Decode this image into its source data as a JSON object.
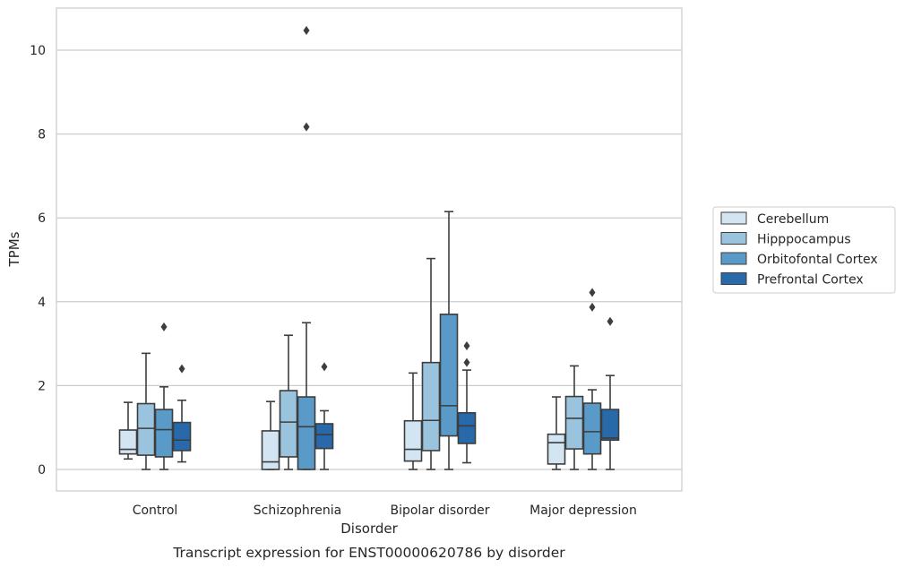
{
  "chart_data": {
    "type": "box",
    "xlabel": "Disorder",
    "ylabel": "TPMs",
    "caption": "Transcript expression for ENST00000620786 by disorder",
    "ylim": [
      -0.5,
      11
    ],
    "yticks": [
      0,
      2,
      4,
      6,
      8,
      10
    ],
    "grid": "horizontal",
    "legend_position": "right",
    "categories": [
      "Control",
      "Schizophrenia",
      "Bipolar disorder",
      "Major depression"
    ],
    "series": [
      {
        "name": "Cerebellum",
        "color": "#d3e4f3",
        "boxes": [
          {
            "whislo": 0.25,
            "q1": 0.37,
            "med": 0.48,
            "q3": 0.94,
            "whishi": 1.6,
            "fliers": []
          },
          {
            "whislo": 0.0,
            "q1": 0.0,
            "med": 0.18,
            "q3": 0.92,
            "whishi": 1.62,
            "fliers": []
          },
          {
            "whislo": 0.0,
            "q1": 0.2,
            "med": 0.48,
            "q3": 1.16,
            "whishi": 2.3,
            "fliers": []
          },
          {
            "whislo": 0.0,
            "q1": 0.13,
            "med": 0.64,
            "q3": 0.84,
            "whishi": 1.73,
            "fliers": []
          }
        ]
      },
      {
        "name": "Hipppocampus",
        "color": "#9ac3dd",
        "boxes": [
          {
            "whislo": 0.0,
            "q1": 0.34,
            "med": 0.98,
            "q3": 1.57,
            "whishi": 2.77,
            "fliers": []
          },
          {
            "whislo": 0.0,
            "q1": 0.3,
            "med": 1.13,
            "q3": 1.88,
            "whishi": 3.2,
            "fliers": []
          },
          {
            "whislo": 0.0,
            "q1": 0.45,
            "med": 1.17,
            "q3": 2.55,
            "whishi": 5.03,
            "fliers": []
          },
          {
            "whislo": 0.0,
            "q1": 0.49,
            "med": 1.22,
            "q3": 1.74,
            "whishi": 2.47,
            "fliers": []
          }
        ]
      },
      {
        "name": "Orbitofontal Cortex",
        "color": "#5a9ac9",
        "boxes": [
          {
            "whislo": 0.0,
            "q1": 0.3,
            "med": 0.95,
            "q3": 1.43,
            "whishi": 1.97,
            "fliers": [
              3.4
            ]
          },
          {
            "whislo": 0.0,
            "q1": 0.0,
            "med": 1.02,
            "q3": 1.73,
            "whishi": 3.5,
            "fliers": [
              10.47,
              8.17
            ]
          },
          {
            "whislo": 0.0,
            "q1": 0.8,
            "med": 1.52,
            "q3": 3.7,
            "whishi": 6.15,
            "fliers": []
          },
          {
            "whislo": 0.0,
            "q1": 0.37,
            "med": 0.9,
            "q3": 1.58,
            "whishi": 1.9,
            "fliers": [
              4.22,
              3.87
            ]
          }
        ]
      },
      {
        "name": "Prefrontal Cortex",
        "color": "#2869a9",
        "boxes": [
          {
            "whislo": 0.18,
            "q1": 0.45,
            "med": 0.7,
            "q3": 1.12,
            "whishi": 1.65,
            "fliers": [
              2.4
            ]
          },
          {
            "whislo": 0.0,
            "q1": 0.5,
            "med": 0.83,
            "q3": 1.09,
            "whishi": 1.4,
            "fliers": [
              2.45
            ]
          },
          {
            "whislo": 0.16,
            "q1": 0.62,
            "med": 1.04,
            "q3": 1.35,
            "whishi": 2.37,
            "fliers": [
              2.95,
              2.55
            ]
          },
          {
            "whislo": 0.0,
            "q1": 0.7,
            "med": 0.75,
            "q3": 1.43,
            "whishi": 2.24,
            "fliers": [
              3.53
            ]
          }
        ]
      }
    ]
  }
}
